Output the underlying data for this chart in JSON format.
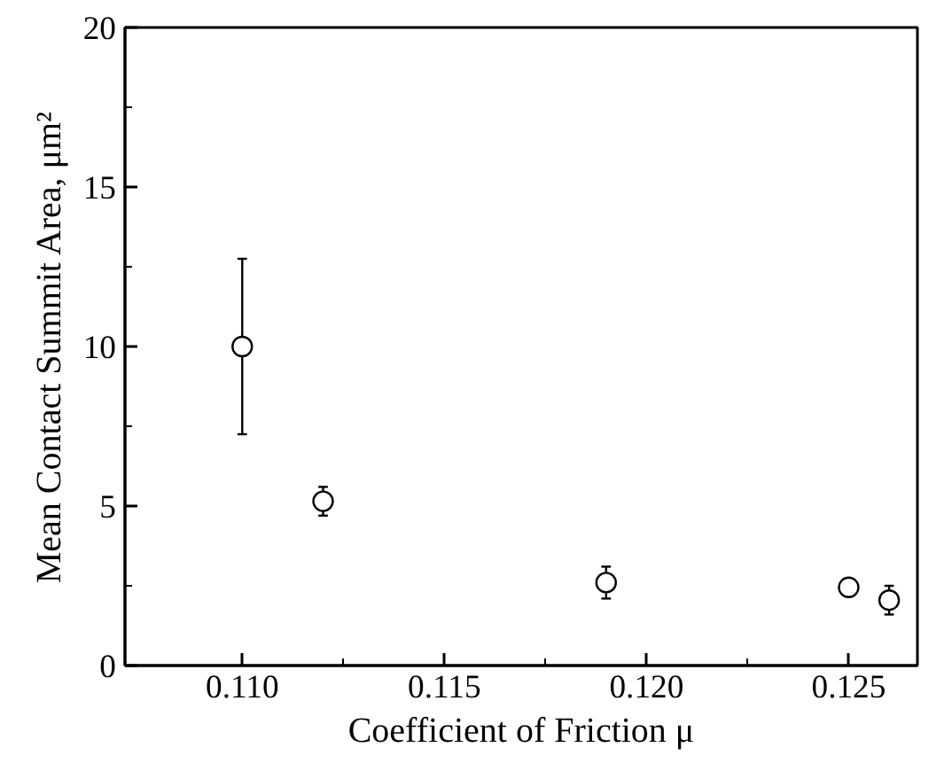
{
  "chart_data": {
    "type": "scatter",
    "xlabel": "Coefficient of Friction μ",
    "ylabel": "Mean Contact Summit Area, μm²",
    "x": [
      0.11,
      0.112,
      0.119,
      0.125,
      0.126
    ],
    "values": [
      10.0,
      5.15,
      2.6,
      2.45,
      2.05
    ],
    "errors": [
      2.75,
      0.45,
      0.5,
      0.15,
      0.45
    ],
    "color": "#000000",
    "marker": "circle",
    "grid": false,
    "xlim": [
      0.1071,
      0.1267
    ],
    "xticks": [
      {
        "value": 0.11,
        "label": "0.110"
      },
      {
        "value": 0.115,
        "label": "0.115"
      },
      {
        "value": 0.12,
        "label": "0.120"
      },
      {
        "value": 0.125,
        "label": "0.125"
      }
    ],
    "ylim": [
      0,
      20
    ],
    "yticks": [
      0,
      5,
      10,
      15,
      20
    ]
  }
}
